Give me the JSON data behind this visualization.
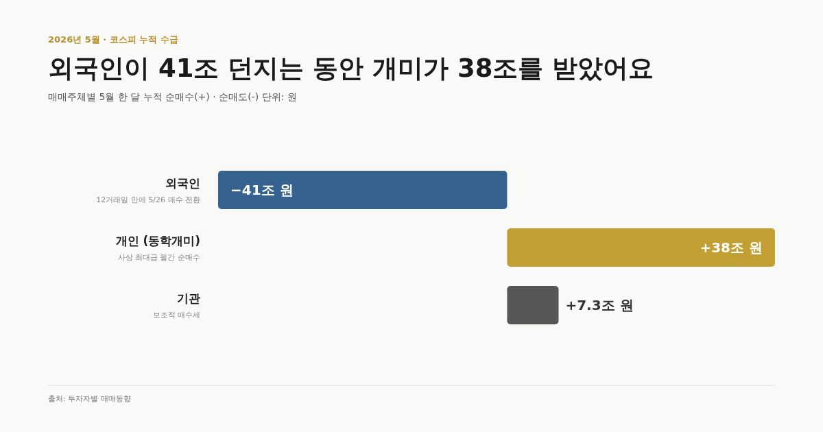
{
  "chart_data": {
    "type": "bar",
    "orientation": "horizontal",
    "title": "외국인이 41조 던지는 동안 개미가 38조를 받았어요",
    "subtitle": "매매주체별 5월 한 달 누적 순매수(+) · 순매도(-) 단위: 원",
    "categories": [
      "외국인",
      "개인 (동학개미)",
      "기관"
    ],
    "values": [
      -41,
      38,
      7.3
    ],
    "colors": [
      "#35628f",
      "#c29f33",
      "#575757"
    ],
    "value_labels": [
      "−41조 원",
      "+38조 원",
      "+7.3조 원"
    ],
    "annotations": [
      "2026년 5월 · 코스피 누적 수급",
      "12거래일 만에 5/26 매수 전환",
      "사상 최대급 월간 순매수",
      "보조적 매수세",
      "출처: 투자자별 매매동향"
    ]
  }
}
